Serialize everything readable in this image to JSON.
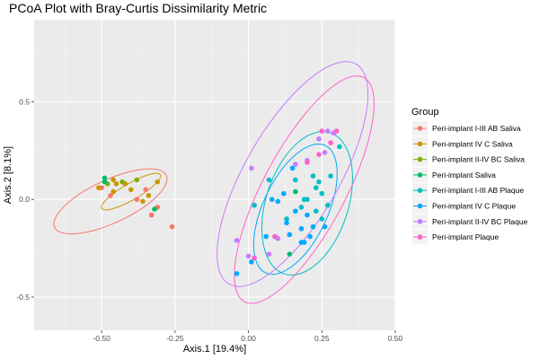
{
  "chart_data": {
    "type": "scatter",
    "title": "PCoA Plot with Bray-Curtis Dissimilarity Metric",
    "xlabel": "Axis.1   [19.4%]",
    "ylabel": "Axis.2   [8.1%]",
    "xlim": [
      -0.73,
      0.5
    ],
    "ylim": [
      -0.67,
      0.92
    ],
    "x_ticks": [
      -0.5,
      -0.25,
      0.0,
      0.25,
      0.5
    ],
    "x_tick_labels": [
      "-0.50",
      "-0.25",
      "0.00",
      "0.25",
      "0.50"
    ],
    "y_ticks": [
      -0.5,
      0.0,
      0.5
    ],
    "y_tick_labels": [
      "-0.5",
      "0.0",
      "0.5"
    ],
    "grid": true,
    "legend_title": "Group",
    "legend_position": "right",
    "series": [
      {
        "name": "Peri-implant I-III AB Saliva",
        "color": "#F8766D",
        "points": [
          [
            -0.5,
            0.06
          ],
          [
            -0.46,
            0.04
          ],
          [
            -0.47,
            0.02
          ],
          [
            -0.38,
            0.0
          ],
          [
            -0.35,
            0.05
          ],
          [
            -0.31,
            -0.04
          ],
          [
            -0.33,
            -0.08
          ],
          [
            -0.26,
            -0.14
          ]
        ],
        "ellipse": {
          "cx": -0.47,
          "cy": -0.01,
          "rx": 0.21,
          "ry": 0.11,
          "angle_deg": -25
        }
      },
      {
        "name": "Peri-implant IV C Saliva",
        "color": "#CD9600",
        "points": [
          [
            -0.51,
            0.06
          ],
          [
            -0.46,
            0.1
          ],
          [
            -0.45,
            0.08
          ],
          [
            -0.42,
            0.08
          ],
          [
            -0.4,
            0.05
          ],
          [
            -0.34,
            0.02
          ],
          [
            -0.31,
            0.09
          ],
          [
            -0.36,
            -0.01
          ],
          [
            -0.46,
            0.04
          ]
        ],
        "ellipse": {
          "cx": -0.4,
          "cy": 0.04,
          "rx": 0.115,
          "ry": 0.042,
          "angle_deg": -30
        }
      },
      {
        "name": "Peri-implant II-IV BC Saliva",
        "color": "#7CAE00",
        "points": [
          [
            -0.48,
            0.08
          ],
          [
            -0.43,
            0.09
          ],
          [
            -0.38,
            0.1
          ]
        ],
        "ellipse": null
      },
      {
        "name": "Peri-implant Saliva",
        "color": "#00BE67",
        "points": [
          [
            -0.49,
            0.11
          ],
          [
            -0.49,
            0.09
          ],
          [
            -0.32,
            -0.05
          ],
          [
            0.09,
            -0.19
          ],
          [
            0.14,
            -0.28
          ],
          [
            0.16,
            0.04
          ]
        ],
        "ellipse": null
      },
      {
        "name": "Peri-implant I-III AB Plaque",
        "color": "#00BFC4",
        "points": [
          [
            0.07,
            0.1
          ],
          [
            0.16,
            0.1
          ],
          [
            0.23,
            0.06
          ],
          [
            0.28,
            0.12
          ],
          [
            0.24,
            0.09
          ],
          [
            0.2,
            0.0
          ],
          [
            0.25,
            0.03
          ],
          [
            0.22,
            0.12
          ],
          [
            0.19,
            0.0
          ],
          [
            0.27,
            -0.03
          ],
          [
            0.23,
            -0.06
          ],
          [
            0.25,
            -0.1
          ],
          [
            0.13,
            -0.1
          ],
          [
            0.18,
            -0.04
          ],
          [
            0.02,
            -0.03
          ],
          [
            0.31,
            0.27
          ]
        ],
        "ellipse": {
          "cx": 0.2,
          "cy": -0.02,
          "rx": 0.14,
          "ry": 0.38,
          "angle_deg": 18
        }
      },
      {
        "name": "Peri-implant IV C Plaque",
        "color": "#00A9FF",
        "points": [
          [
            0.15,
            0.16
          ],
          [
            0.12,
            0.03
          ],
          [
            0.08,
            0.0
          ],
          [
            0.1,
            -0.01
          ],
          [
            0.16,
            -0.06
          ],
          [
            0.2,
            -0.08
          ],
          [
            0.13,
            -0.12
          ],
          [
            0.18,
            -0.15
          ],
          [
            0.22,
            -0.14
          ],
          [
            0.18,
            -0.22
          ],
          [
            0.21,
            -0.19
          ],
          [
            0.26,
            -0.14
          ],
          [
            0.06,
            -0.19
          ],
          [
            -0.04,
            -0.38
          ],
          [
            0.01,
            -0.32
          ],
          [
            0.19,
            -0.22
          ],
          [
            0.14,
            -0.18
          ]
        ],
        "ellipse": {
          "cx": 0.16,
          "cy": -0.05,
          "rx": 0.11,
          "ry": 0.36,
          "angle_deg": 25
        }
      },
      {
        "name": "Peri-implant II-IV BC Plaque",
        "color": "#C77CFF",
        "points": [
          [
            0.01,
            0.16
          ],
          [
            -0.04,
            -0.21
          ],
          [
            0.0,
            -0.29
          ],
          [
            0.07,
            -0.28
          ],
          [
            0.16,
            0.18
          ],
          [
            0.26,
            0.24
          ],
          [
            0.27,
            0.35
          ],
          [
            0.29,
            0.34
          ],
          [
            0.2,
            0.2
          ],
          [
            0.24,
            0.31
          ],
          [
            0.1,
            -0.2
          ]
        ],
        "ellipse": {
          "cx": 0.15,
          "cy": 0.13,
          "rx": 0.16,
          "ry": 0.65,
          "angle_deg": 30
        }
      },
      {
        "name": "Peri-implant Plaque",
        "color": "#FF61CC",
        "points": [
          [
            0.28,
            0.29
          ],
          [
            0.25,
            0.35
          ],
          [
            0.3,
            0.35
          ],
          [
            0.24,
            0.23
          ],
          [
            0.09,
            -0.19
          ],
          [
            0.02,
            -0.3
          ],
          [
            0.2,
            0.19
          ]
        ],
        "ellipse": {
          "cx": 0.19,
          "cy": 0.05,
          "rx": 0.14,
          "ry": 0.65,
          "angle_deg": 28
        }
      }
    ]
  }
}
